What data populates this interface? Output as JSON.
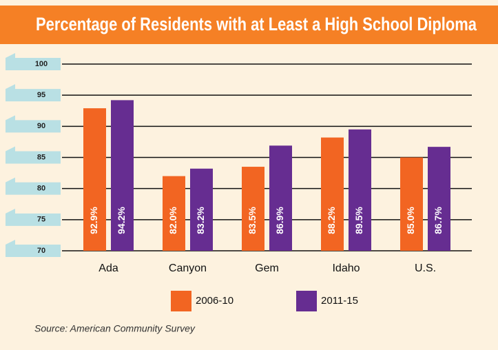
{
  "chart_data": {
    "type": "bar",
    "title": "Percentage of Residents with at Least a High School Diploma",
    "categories": [
      "Ada",
      "Canyon",
      "Gem",
      "Idaho",
      "U.S."
    ],
    "series": [
      {
        "name": "2006-10",
        "color": "#f26522",
        "values": [
          92.9,
          82.0,
          83.5,
          88.2,
          85.0
        ],
        "value_labels": [
          "92.9%",
          "82.0%",
          "83.5%",
          "88.2%",
          "85.0%"
        ]
      },
      {
        "name": "2011-15",
        "color": "#662d91",
        "values": [
          94.2,
          83.2,
          86.9,
          89.5,
          86.7
        ],
        "value_labels": [
          "94.2%",
          "83.2%",
          "86.9%",
          "89.5%",
          "86.7%"
        ]
      }
    ],
    "ylim": [
      70,
      100
    ],
    "yticks": [
      70,
      75,
      80,
      85,
      90,
      95,
      100
    ],
    "grid": true,
    "legend": "bottom",
    "source": "Source: American Community Survey"
  }
}
